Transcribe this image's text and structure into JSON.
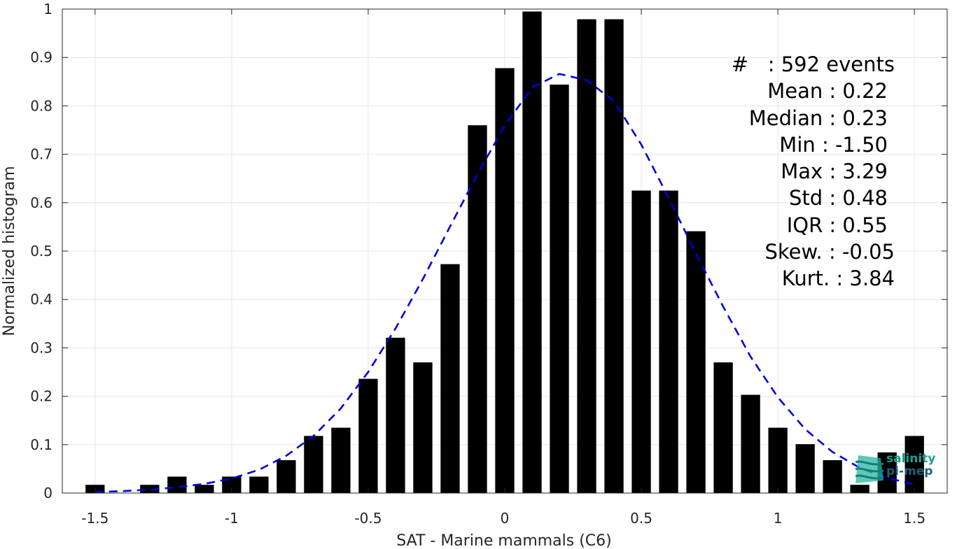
{
  "chart_data": {
    "type": "bar",
    "xlabel": "SAT - Marine mammals (C6)",
    "ylabel": "Normalized histogram",
    "xlim": [
      -1.62,
      1.62
    ],
    "ylim": [
      0,
      1
    ],
    "xticks": [
      "-1.5",
      "-1",
      "-0.5",
      "0",
      "0.5",
      "1",
      "1.5"
    ],
    "xtick_values": [
      -1.5,
      -1,
      -0.5,
      0,
      0.5,
      1,
      1.5
    ],
    "yticks": [
      "0",
      "0.1",
      "0.2",
      "0.3",
      "0.4",
      "0.5",
      "0.6",
      "0.7",
      "0.8",
      "0.9",
      "1"
    ],
    "ytick_values": [
      0,
      0.1,
      0.2,
      0.3,
      0.4,
      0.5,
      0.6,
      0.7,
      0.8,
      0.9,
      1
    ],
    "grid": true,
    "bar_color": "#000000",
    "bins": [
      -1.5,
      -1.3,
      -1.2,
      -1.1,
      -1.0,
      -0.9,
      -0.8,
      -0.7,
      -0.6,
      -0.5,
      -0.4,
      -0.3,
      -0.2,
      -0.1,
      0.0,
      0.1,
      0.2,
      0.3,
      0.4,
      0.5,
      0.6,
      0.7,
      0.8,
      0.9,
      1.0,
      1.1,
      1.2,
      1.3,
      1.4,
      1.5
    ],
    "values": [
      0.017,
      0.017,
      0.034,
      0.017,
      0.034,
      0.034,
      0.068,
      0.118,
      0.135,
      0.236,
      0.321,
      0.27,
      0.473,
      0.76,
      0.878,
      0.995,
      0.844,
      0.979,
      0.979,
      0.625,
      0.625,
      0.541,
      0.27,
      0.203,
      0.135,
      0.101,
      0.068,
      0.017,
      0.084,
      0.118
    ],
    "fit_curve": {
      "style": "dashed",
      "color": "#0000dd",
      "x": [
        -1.5,
        -1.4,
        -1.3,
        -1.2,
        -1.1,
        -1.0,
        -0.9,
        -0.8,
        -0.7,
        -0.6,
        -0.5,
        -0.4,
        -0.3,
        -0.2,
        -0.1,
        0.0,
        0.1,
        0.2,
        0.3,
        0.4,
        0.5,
        0.6,
        0.7,
        0.8,
        0.9,
        1.0,
        1.1,
        1.2,
        1.3,
        1.4,
        1.5
      ],
      "y": [
        0.002,
        0.004,
        0.007,
        0.012,
        0.019,
        0.03,
        0.048,
        0.077,
        0.118,
        0.175,
        0.25,
        0.34,
        0.442,
        0.551,
        0.659,
        0.759,
        0.838,
        0.866,
        0.853,
        0.81,
        0.72,
        0.61,
        0.495,
        0.385,
        0.282,
        0.198,
        0.132,
        0.085,
        0.052,
        0.031,
        0.018
      ]
    }
  },
  "stats": {
    "events": "#   : 592 events",
    "mean": "Mean : 0.22",
    "median": "Median : 0.23",
    "min": "Min : -1.50",
    "max": "Max : 3.29",
    "std": "Std : 0.48",
    "iqr": "IQR : 0.55",
    "skew": "Skew. : -0.05",
    "kurt": "Kurt. : 3.84"
  },
  "logo": {
    "line1": "salinity",
    "line2": "pi-mep",
    "colors": [
      "#1aa08f",
      "#1f5f73"
    ]
  }
}
